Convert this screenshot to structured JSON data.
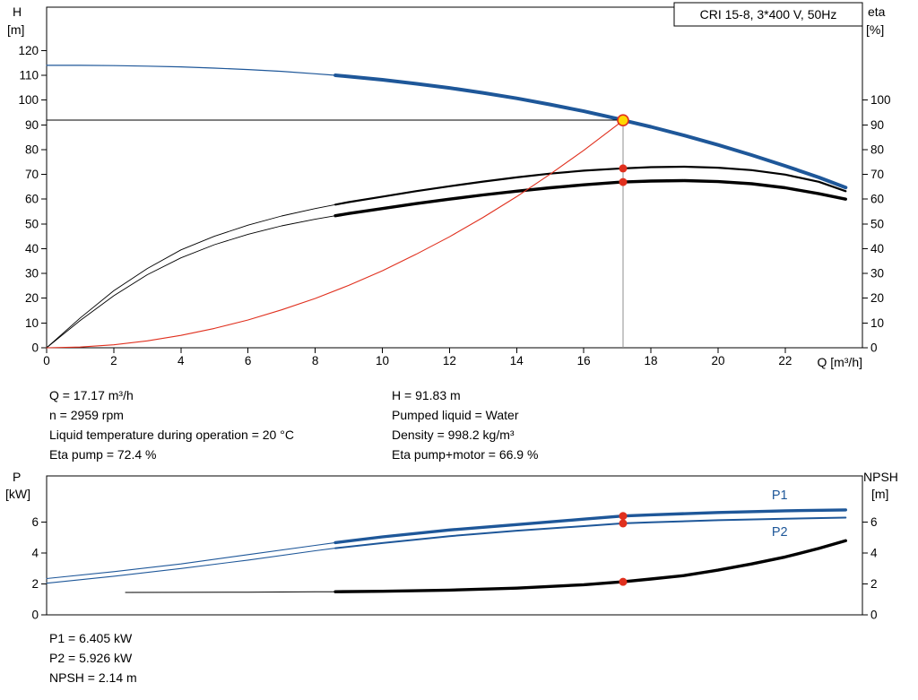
{
  "colors": {
    "blue": "#1e5799",
    "black": "#000000",
    "red": "#e0301e",
    "gray": "#8f8f8f",
    "duty_fill": "#ffd800",
    "duty_stroke": "#e0301e",
    "text": "#000000"
  },
  "info_left": [
    "Q = 17.17 m³/h",
    "n = 2959 rpm",
    "Liquid temperature during operation = 20 °C",
    "Eta pump = 72.4 %"
  ],
  "info_right": [
    "H = 91.83 m",
    "Pumped liquid = Water",
    "Density = 998.2 kg/m³",
    "Eta pump+motor = 66.9 %"
  ],
  "info_bottom": [
    "P1 = 6.405 kW",
    "P2 = 5.926 kW",
    "NPSH = 2.14 m"
  ],
  "chart_data": [
    {
      "type": "line",
      "title": "CRI 15-8, 3*400 V, 50Hz",
      "x_label": "Q [m³/h]",
      "y_left_label": [
        "H",
        "[m]"
      ],
      "y_right_label": [
        "eta",
        "[%]"
      ],
      "x_range": [
        0,
        24.3
      ],
      "y_range": [
        0,
        137.5
      ],
      "x_ticks": [
        0,
        2,
        4,
        6,
        8,
        10,
        12,
        14,
        16,
        18,
        20,
        22
      ],
      "y_left_ticks": [
        0,
        10,
        20,
        30,
        40,
        50,
        60,
        70,
        80,
        90,
        100,
        110,
        120
      ],
      "y_right_ticks": [
        0,
        10,
        20,
        30,
        40,
        50,
        60,
        70,
        80,
        90,
        100
      ],
      "duty_point": {
        "x": 17.17,
        "y": 91.83
      },
      "helpers": [
        {
          "type": "h",
          "y": 91.83,
          "x1": 0,
          "x2": 17.17,
          "color": "black",
          "width": 1
        },
        {
          "type": "v",
          "x": 17.17,
          "y1": 0,
          "y2": 91.83,
          "color": "gray",
          "width": 1.3
        }
      ],
      "markers": [
        {
          "x": 17.17,
          "y": 72.4
        },
        {
          "x": 17.17,
          "y": 66.9
        }
      ],
      "series": [
        {
          "name": "eta-pump-curve",
          "color": "black",
          "thin_width": 0.9,
          "thick_width": 2.2,
          "thick_from": 8.6,
          "points": [
            [
              0,
              0
            ],
            [
              1,
              12
            ],
            [
              2,
              23
            ],
            [
              3,
              32
            ],
            [
              4,
              39.5
            ],
            [
              5,
              45
            ],
            [
              6,
              49.5
            ],
            [
              7,
              53.2
            ],
            [
              8,
              56.2
            ],
            [
              8.6,
              57.8
            ],
            [
              9,
              58.8
            ],
            [
              10,
              61
            ],
            [
              11,
              63.2
            ],
            [
              12,
              65.2
            ],
            [
              13,
              67.1
            ],
            [
              14,
              68.8
            ],
            [
              15,
              70.3
            ],
            [
              16,
              71.5
            ],
            [
              17,
              72.3
            ],
            [
              17.17,
              72.4
            ],
            [
              18,
              72.9
            ],
            [
              19,
              73.1
            ],
            [
              20,
              72.7
            ],
            [
              21,
              71.7
            ],
            [
              22,
              69.9
            ],
            [
              23,
              67
            ],
            [
              23.8,
              63.2
            ]
          ]
        },
        {
          "name": "eta-pump-motor-curve",
          "color": "black",
          "thin_width": 0.9,
          "thick_width": 3.4,
          "thick_from": 8.6,
          "points": [
            [
              0,
              0
            ],
            [
              1,
              11
            ],
            [
              2,
              21
            ],
            [
              3,
              29.5
            ],
            [
              4,
              36.3
            ],
            [
              5,
              41.6
            ],
            [
              6,
              45.8
            ],
            [
              7,
              49.2
            ],
            [
              8,
              51.9
            ],
            [
              8.6,
              53.3
            ],
            [
              9,
              54.2
            ],
            [
              10,
              56.2
            ],
            [
              11,
              58.2
            ],
            [
              12,
              60
            ],
            [
              13,
              61.7
            ],
            [
              14,
              63.2
            ],
            [
              15,
              64.6
            ],
            [
              16,
              65.8
            ],
            [
              17,
              66.8
            ],
            [
              17.17,
              66.9
            ],
            [
              18,
              67.3
            ],
            [
              19,
              67.5
            ],
            [
              20,
              67.1
            ],
            [
              21,
              66.2
            ],
            [
              22,
              64.6
            ],
            [
              23,
              62.2
            ],
            [
              23.8,
              60
            ]
          ]
        },
        {
          "name": "hq-curve",
          "color": "blue",
          "thin_width": 1.2,
          "thick_width": 4,
          "thick_from": 8.6,
          "points": [
            [
              0,
              114
            ],
            [
              1,
              114
            ],
            [
              2,
              113.9
            ],
            [
              3,
              113.7
            ],
            [
              4,
              113.4
            ],
            [
              5,
              112.9
            ],
            [
              6,
              112.3
            ],
            [
              7,
              111.6
            ],
            [
              8,
              110.6
            ],
            [
              8.6,
              110
            ],
            [
              9,
              109.5
            ],
            [
              10,
              108.2
            ],
            [
              11,
              106.6
            ],
            [
              12,
              104.9
            ],
            [
              13,
              102.9
            ],
            [
              14,
              100.7
            ],
            [
              15,
              98.2
            ],
            [
              16,
              95.5
            ],
            [
              17,
              92.5
            ],
            [
              17.17,
              91.83
            ],
            [
              18,
              89.2
            ],
            [
              19,
              85.7
            ],
            [
              20,
              81.9
            ],
            [
              21,
              77.8
            ],
            [
              22,
              73.4
            ],
            [
              23,
              68.8
            ],
            [
              23.8,
              64.7
            ]
          ]
        },
        {
          "name": "system-curve",
          "color": "red",
          "thin_width": 1.1,
          "points": [
            [
              0,
              0
            ],
            [
              1,
              0.3
            ],
            [
              2,
              1.2
            ],
            [
              3,
              2.8
            ],
            [
              4,
              5
            ],
            [
              5,
              7.8
            ],
            [
              6,
              11.2
            ],
            [
              7,
              15.3
            ],
            [
              8,
              19.9
            ],
            [
              9,
              25.2
            ],
            [
              10,
              31.1
            ],
            [
              11,
              37.7
            ],
            [
              12,
              44.8
            ],
            [
              13,
              52.6
            ],
            [
              14,
              61
            ],
            [
              15,
              70.1
            ],
            [
              16,
              79.7
            ],
            [
              17,
              90
            ],
            [
              17.17,
              91.83
            ]
          ]
        }
      ]
    },
    {
      "type": "line",
      "title": "",
      "x_label": "",
      "y_left_label": [
        "P",
        "[kW]"
      ],
      "y_right_label": [
        "NPSH",
        "[m]"
      ],
      "x_range": [
        0,
        24.3
      ],
      "y_range": [
        0,
        9
      ],
      "x_ticks": [],
      "y_left_ticks": [
        0,
        2,
        4,
        6
      ],
      "y_right_ticks": [
        0,
        2,
        4,
        6
      ],
      "markers": [
        {
          "x": 17.17,
          "y": 6.405
        },
        {
          "x": 17.17,
          "y": 5.926
        },
        {
          "x": 17.17,
          "y": 2.14
        }
      ],
      "labels": [
        {
          "text": "P1",
          "x": 21.6,
          "y": 7.5,
          "color": "blue"
        },
        {
          "text": "P2",
          "x": 21.6,
          "y": 5.1,
          "color": "blue"
        }
      ],
      "series": [
        {
          "name": "p1-curve",
          "color": "blue",
          "thin_width": 1.1,
          "thick_width": 3.4,
          "thick_from": 8.6,
          "points": [
            [
              0,
              2.35
            ],
            [
              2,
              2.8
            ],
            [
              4,
              3.3
            ],
            [
              6,
              3.9
            ],
            [
              8,
              4.5
            ],
            [
              8.6,
              4.68
            ],
            [
              10,
              5.05
            ],
            [
              12,
              5.5
            ],
            [
              14,
              5.85
            ],
            [
              16,
              6.2
            ],
            [
              17.17,
              6.405
            ],
            [
              18,
              6.48
            ],
            [
              20,
              6.63
            ],
            [
              22,
              6.74
            ],
            [
              23.8,
              6.8
            ]
          ]
        },
        {
          "name": "p2-curve",
          "color": "blue",
          "thin_width": 1.1,
          "thick_width": 2,
          "thick_from": 8.6,
          "points": [
            [
              0,
              2.05
            ],
            [
              2,
              2.5
            ],
            [
              4,
              3
            ],
            [
              6,
              3.55
            ],
            [
              8,
              4.15
            ],
            [
              8.6,
              4.32
            ],
            [
              10,
              4.65
            ],
            [
              12,
              5.1
            ],
            [
              14,
              5.45
            ],
            [
              16,
              5.75
            ],
            [
              17.17,
              5.926
            ],
            [
              18,
              6
            ],
            [
              20,
              6.13
            ],
            [
              22,
              6.23
            ],
            [
              23.8,
              6.3
            ]
          ]
        },
        {
          "name": "npsh-curve",
          "color": "black",
          "thin_width": 1,
          "thick_width": 3.4,
          "thick_from": 8.6,
          "points": [
            [
              2.35,
              1.45
            ],
            [
              4,
              1.46
            ],
            [
              6,
              1.47
            ],
            [
              8,
              1.49
            ],
            [
              8.6,
              1.5
            ],
            [
              10,
              1.53
            ],
            [
              12,
              1.6
            ],
            [
              14,
              1.73
            ],
            [
              16,
              1.95
            ],
            [
              17.17,
              2.14
            ],
            [
              18,
              2.32
            ],
            [
              19,
              2.55
            ],
            [
              20,
              2.9
            ],
            [
              21,
              3.3
            ],
            [
              22,
              3.75
            ],
            [
              23,
              4.3
            ],
            [
              23.8,
              4.8
            ]
          ]
        }
      ]
    }
  ]
}
